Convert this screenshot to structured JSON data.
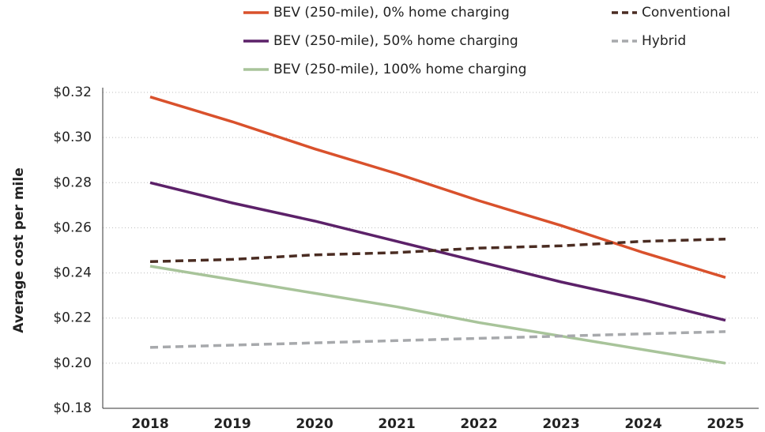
{
  "chart_data": {
    "type": "line",
    "y_label": "Average cost per mile",
    "categories": [
      "2018",
      "2019",
      "2020",
      "2021",
      "2022",
      "2023",
      "2024",
      "2025"
    ],
    "series": [
      {
        "name": "BEV (250-mile), 0% home charging",
        "color": "#d9512c",
        "dash": false,
        "values": [
          0.318,
          0.307,
          0.295,
          0.284,
          0.272,
          0.261,
          0.249,
          0.238
        ]
      },
      {
        "name": "BEV (250-mile), 50% home charging",
        "color": "#5c2169",
        "dash": false,
        "values": [
          0.28,
          0.271,
          0.263,
          0.254,
          0.245,
          0.236,
          0.228,
          0.219
        ]
      },
      {
        "name": "BEV (250-mile), 100% home charging",
        "color": "#a8c49a",
        "dash": false,
        "values": [
          0.243,
          0.237,
          0.231,
          0.225,
          0.218,
          0.212,
          0.206,
          0.2
        ]
      },
      {
        "name": "Conventional",
        "color": "#4a2c22",
        "dash": true,
        "values": [
          0.245,
          0.246,
          0.248,
          0.249,
          0.251,
          0.252,
          0.254,
          0.255
        ]
      },
      {
        "name": "Hybrid",
        "color": "#a7a9ac",
        "dash": true,
        "values": [
          0.207,
          0.208,
          0.209,
          0.21,
          0.211,
          0.212,
          0.213,
          0.214
        ]
      }
    ],
    "ylim": [
      0.18,
      0.32
    ],
    "yticks": [
      {
        "value": 0.18,
        "label": "$0.18"
      },
      {
        "value": 0.2,
        "label": "$0.20"
      },
      {
        "value": 0.22,
        "label": "$0.22"
      },
      {
        "value": 0.24,
        "label": "$0.24"
      },
      {
        "value": 0.26,
        "label": "$0.26"
      },
      {
        "value": 0.28,
        "label": "$0.28"
      },
      {
        "value": 0.3,
        "label": "$0.30"
      },
      {
        "value": 0.32,
        "label": "$0.32"
      }
    ],
    "grid": true
  }
}
